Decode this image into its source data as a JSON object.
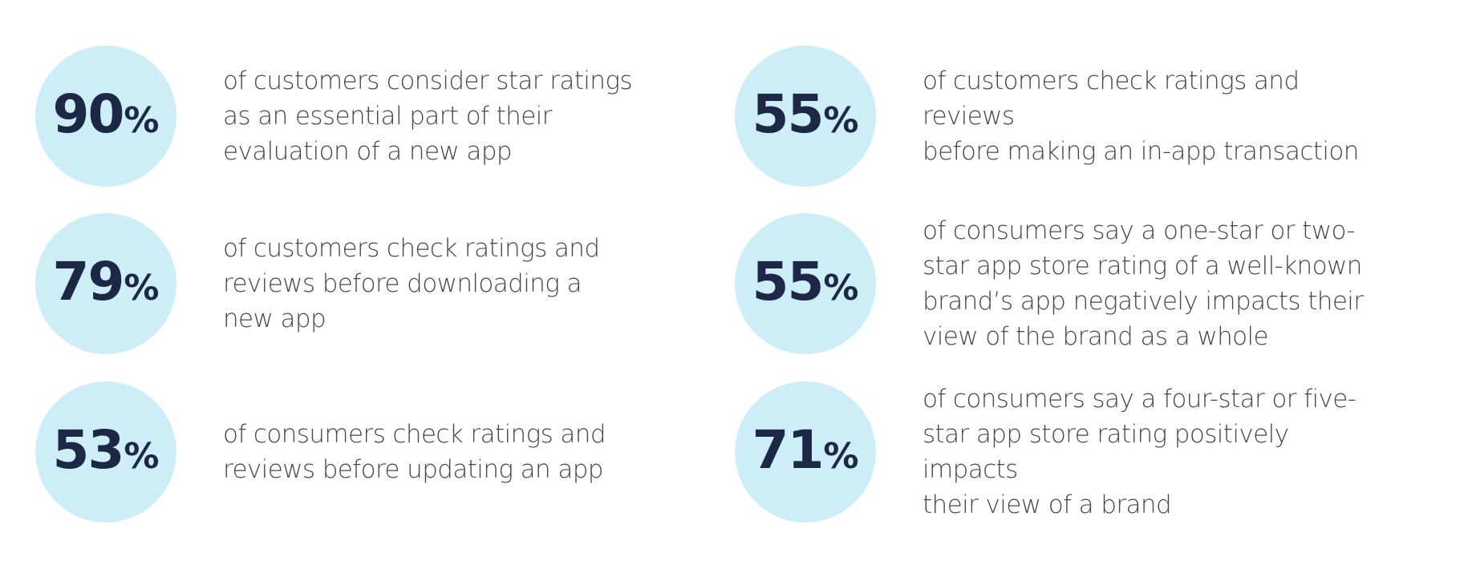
{
  "stats": [
    {
      "value": "90",
      "unit": "%",
      "text": "of customers consider star ratings\nas an essential part of their\nevaluation of a new app"
    },
    {
      "value": "79",
      "unit": "%",
      "text": "of customers check ratings and\nreviews before downloading a\nnew app"
    },
    {
      "value": "53",
      "unit": "%",
      "text": "of consumers check ratings and\nreviews before updating an app"
    },
    {
      "value": "55",
      "unit": "%",
      "text": "of customers check ratings and reviews\nbefore making an in-app transaction"
    },
    {
      "value": "55",
      "unit": "%",
      "text": "of consumers say a one-star or two-\nstar app store rating of a well-known\nbrand’s app negatively impacts their\nview of the brand as a whole"
    },
    {
      "value": "71",
      "unit": "%",
      "text": "of consumers say a four-star or five-\nstar app store rating positively impacts\ntheir view of a brand"
    }
  ],
  "colors": {
    "circle": "#cdeef7",
    "number": "#1d2746",
    "text": "#474747"
  }
}
